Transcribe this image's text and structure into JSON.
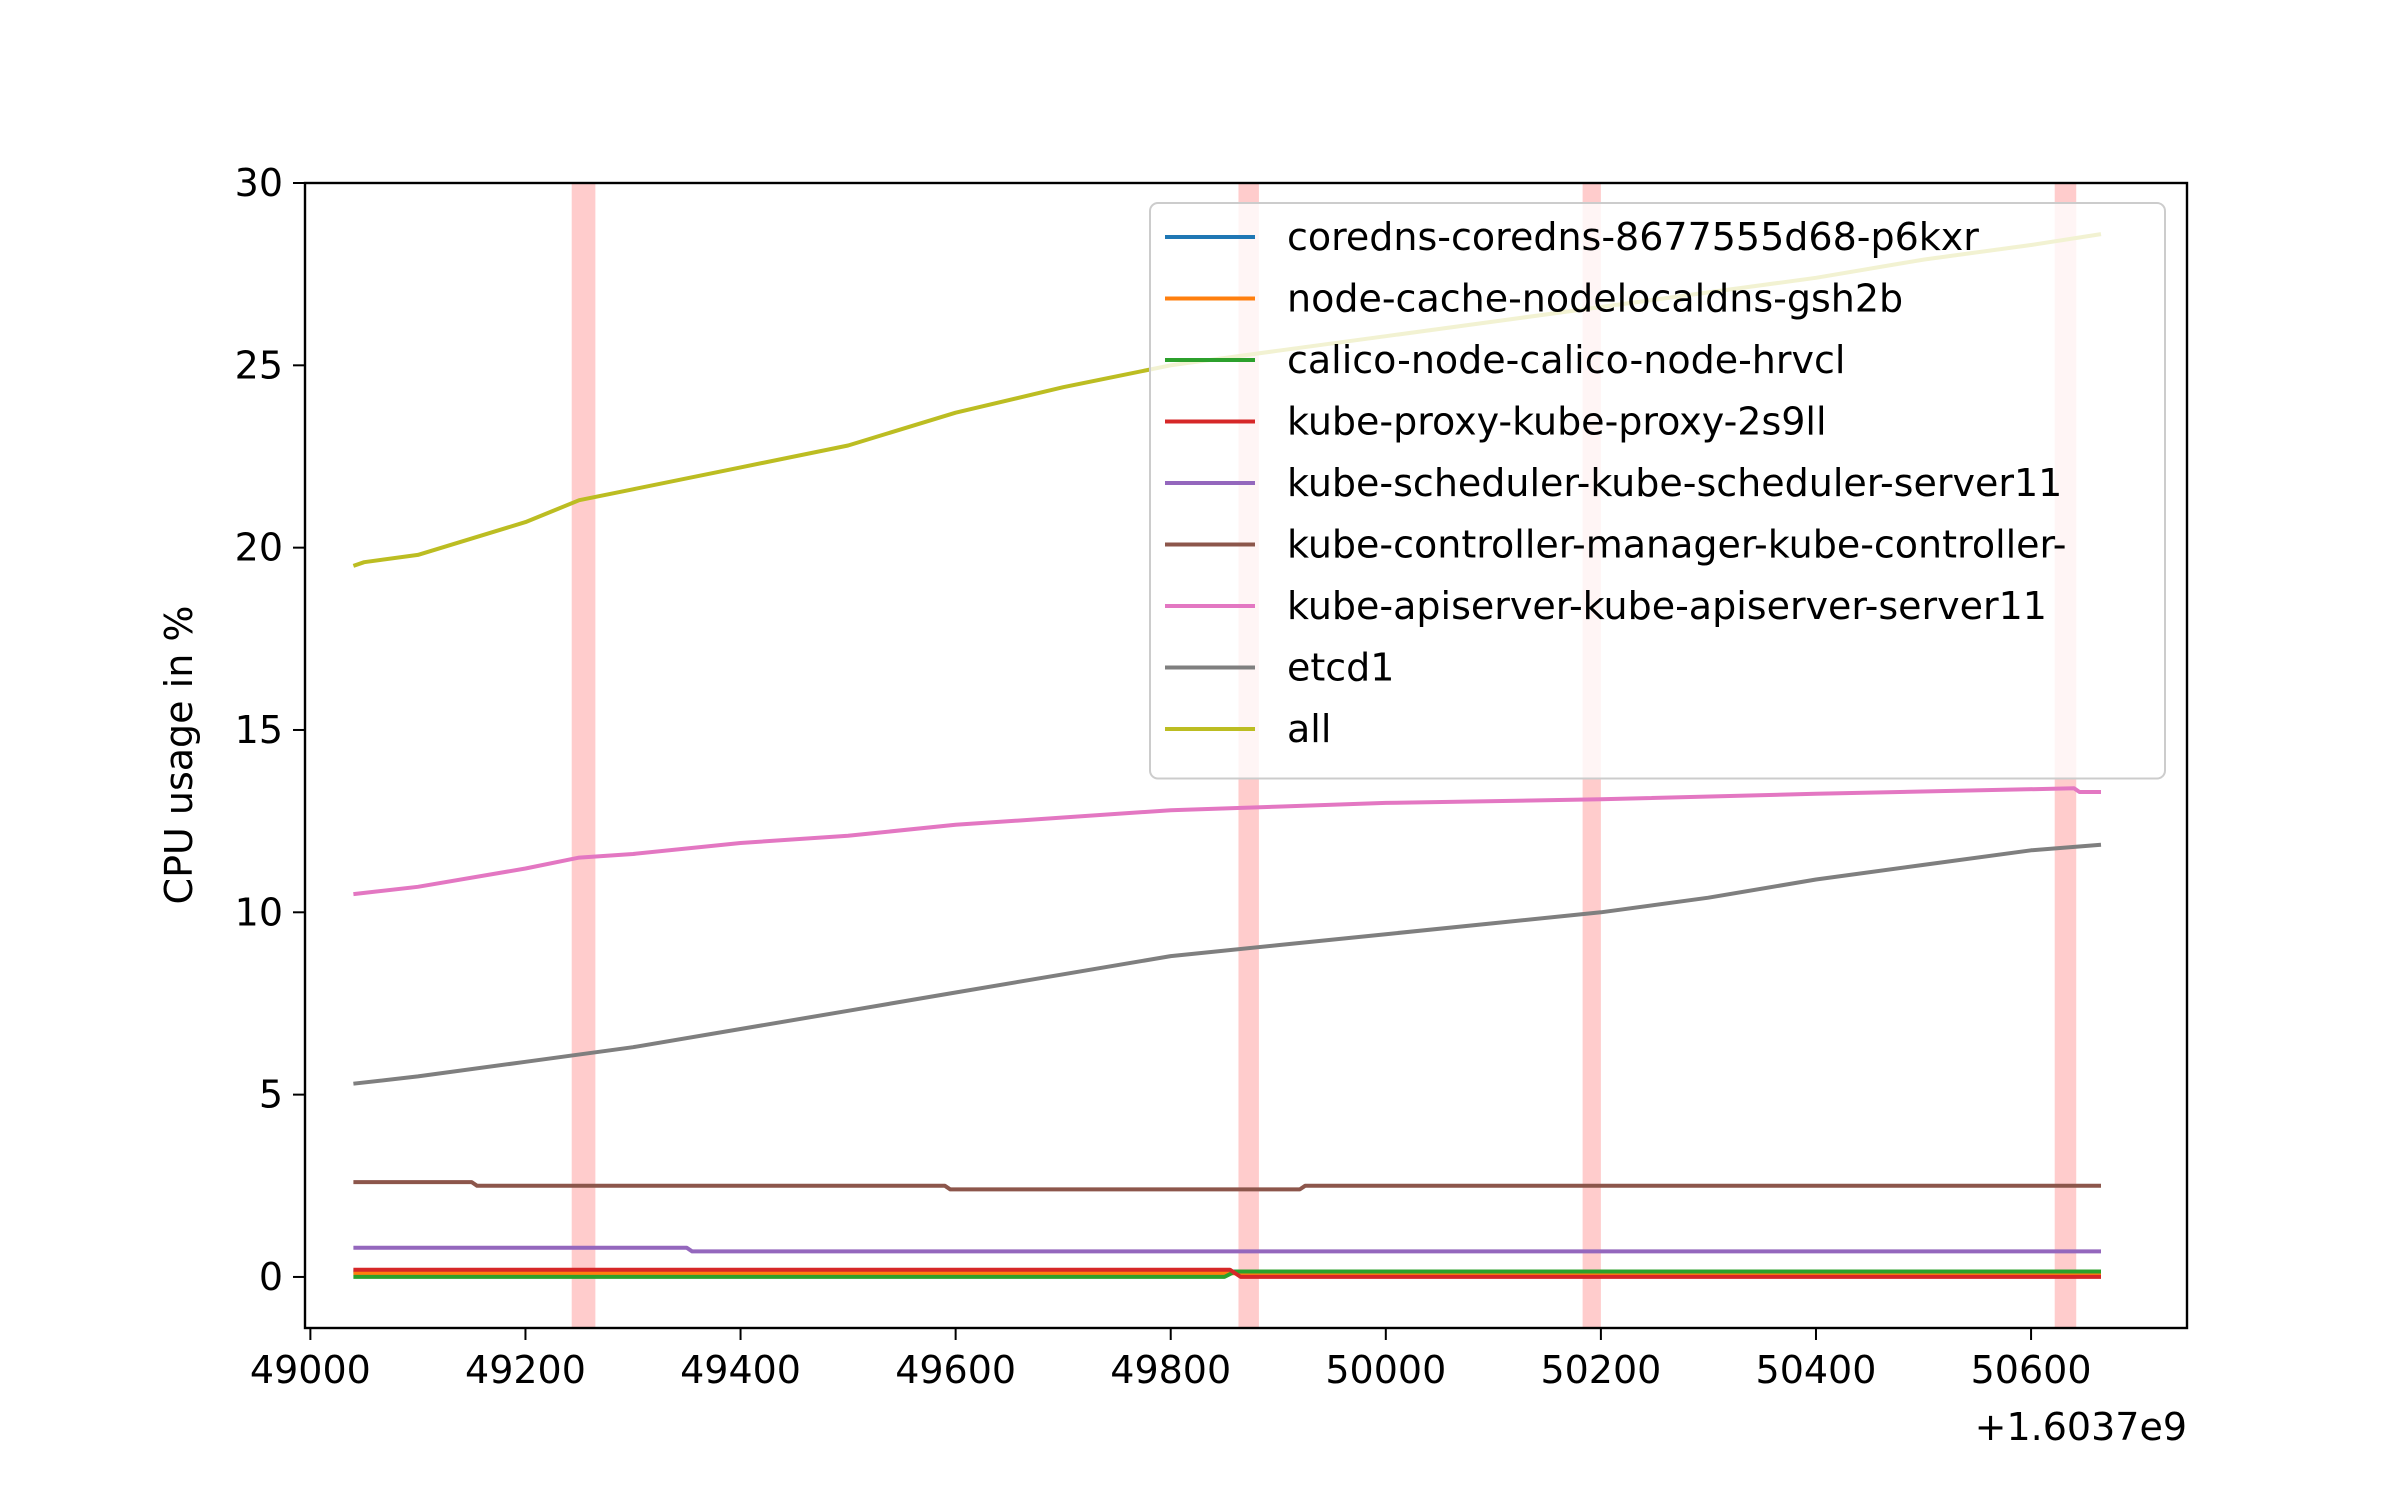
{
  "chart_data": {
    "type": "line",
    "title": "",
    "xlabel": "",
    "ylabel": "CPU usage in %",
    "x_offset_label": "+1.6037e9",
    "xlim": [
      48995,
      50745
    ],
    "ylim": [
      -1.4,
      30
    ],
    "x_ticks": [
      49000,
      49200,
      49400,
      49600,
      49800,
      50000,
      50200,
      50400,
      50600
    ],
    "y_ticks": [
      0,
      5,
      10,
      15,
      20,
      25,
      30
    ],
    "grid": false,
    "legend_position": "upper-right",
    "highlight_bands": [
      {
        "x0": 49243,
        "x1": 49265
      },
      {
        "x0": 49863,
        "x1": 49882
      },
      {
        "x0": 50183,
        "x1": 50200
      },
      {
        "x0": 50622,
        "x1": 50642
      }
    ],
    "highlight_color": "#ffcccc",
    "series": [
      {
        "name": "coredns-coredns-8677555d68-p6kxr",
        "color": "#1f77b4",
        "points": [
          [
            49040,
            0.15
          ],
          [
            50665,
            0.15
          ]
        ]
      },
      {
        "name": "node-cache-nodelocaldns-gsh2b",
        "color": "#ff7f0e",
        "points": [
          [
            49040,
            0.1
          ],
          [
            49860,
            0.1
          ],
          [
            49870,
            0.05
          ],
          [
            49900,
            0.1
          ],
          [
            49915,
            0.05
          ],
          [
            50665,
            0.05
          ]
        ]
      },
      {
        "name": "calico-node-calico-node-hrvcl",
        "color": "#2ca02c",
        "points": [
          [
            49040,
            0.0
          ],
          [
            49850,
            0.0
          ],
          [
            49860,
            0.15
          ],
          [
            50665,
            0.15
          ]
        ]
      },
      {
        "name": "kube-proxy-kube-proxy-2s9ll",
        "color": "#d62728",
        "points": [
          [
            49040,
            0.2
          ],
          [
            49855,
            0.2
          ],
          [
            49865,
            0.0
          ],
          [
            50665,
            0.0
          ]
        ]
      },
      {
        "name": "kube-scheduler-kube-scheduler-server11",
        "color": "#9467bd",
        "points": [
          [
            49040,
            0.8
          ],
          [
            49350,
            0.8
          ],
          [
            49355,
            0.7
          ],
          [
            50665,
            0.7
          ]
        ]
      },
      {
        "name": "kube-controller-manager-kube-controller-",
        "color": "#8c564b",
        "points": [
          [
            49040,
            2.6
          ],
          [
            49150,
            2.6
          ],
          [
            49155,
            2.5
          ],
          [
            49590,
            2.5
          ],
          [
            49595,
            2.4
          ],
          [
            49920,
            2.4
          ],
          [
            49925,
            2.5
          ],
          [
            50665,
            2.5
          ]
        ]
      },
      {
        "name": "kube-apiserver-kube-apiserver-server11",
        "color": "#e377c2",
        "points": [
          [
            49040,
            10.5
          ],
          [
            49100,
            10.7
          ],
          [
            49200,
            11.2
          ],
          [
            49250,
            11.5
          ],
          [
            49300,
            11.6
          ],
          [
            49400,
            11.9
          ],
          [
            49500,
            12.1
          ],
          [
            49600,
            12.4
          ],
          [
            49700,
            12.6
          ],
          [
            49800,
            12.8
          ],
          [
            49900,
            12.9
          ],
          [
            50000,
            13.0
          ],
          [
            50200,
            13.1
          ],
          [
            50400,
            13.25
          ],
          [
            50640,
            13.4
          ],
          [
            50645,
            13.3
          ],
          [
            50665,
            13.3
          ]
        ]
      },
      {
        "name": "etcd1",
        "color": "#7f7f7f",
        "points": [
          [
            49040,
            5.3
          ],
          [
            49100,
            5.5
          ],
          [
            49200,
            5.9
          ],
          [
            49300,
            6.3
          ],
          [
            49400,
            6.8
          ],
          [
            49500,
            7.3
          ],
          [
            49600,
            7.8
          ],
          [
            49700,
            8.3
          ],
          [
            49800,
            8.8
          ],
          [
            49900,
            9.1
          ],
          [
            50000,
            9.4
          ],
          [
            50100,
            9.7
          ],
          [
            50200,
            10.0
          ],
          [
            50300,
            10.4
          ],
          [
            50400,
            10.9
          ],
          [
            50500,
            11.3
          ],
          [
            50600,
            11.7
          ],
          [
            50665,
            11.85
          ]
        ]
      },
      {
        "name": "all",
        "color": "#bcbd22",
        "points": [
          [
            49040,
            19.5
          ],
          [
            49050,
            19.6
          ],
          [
            49100,
            19.8
          ],
          [
            49200,
            20.7
          ],
          [
            49250,
            21.3
          ],
          [
            49300,
            21.6
          ],
          [
            49400,
            22.2
          ],
          [
            49500,
            22.8
          ],
          [
            49600,
            23.7
          ],
          [
            49700,
            24.4
          ],
          [
            49800,
            25.0
          ],
          [
            49900,
            25.4
          ],
          [
            50000,
            25.8
          ],
          [
            50100,
            26.2
          ],
          [
            50200,
            26.6
          ],
          [
            50300,
            27.0
          ],
          [
            50400,
            27.4
          ],
          [
            50500,
            27.9
          ],
          [
            50600,
            28.3
          ],
          [
            50665,
            28.6
          ]
        ]
      }
    ]
  }
}
